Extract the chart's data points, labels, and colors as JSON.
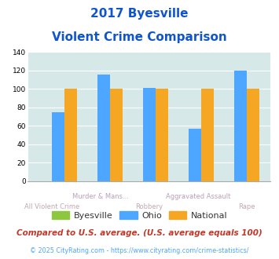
{
  "title_line1": "2017 Byesville",
  "title_line2": "Violent Crime Comparison",
  "categories": [
    "All Violent Crime",
    "Murder & Mans...",
    "Robbery",
    "Aggravated Assault",
    "Rape"
  ],
  "cat_top": [
    "",
    "Murder & Mans...",
    "",
    "Aggravated Assault",
    ""
  ],
  "cat_bot": [
    "All Violent Crime",
    "",
    "Robbery",
    "",
    "Rape"
  ],
  "byesville": [
    0,
    0,
    0,
    0,
    0
  ],
  "ohio": [
    75,
    115,
    101,
    57,
    120
  ],
  "national": [
    100,
    100,
    100,
    100,
    100
  ],
  "byesville_color": "#8dc63f",
  "ohio_color": "#4da6ff",
  "national_color": "#f5a623",
  "ylim": [
    0,
    140
  ],
  "yticks": [
    0,
    20,
    40,
    60,
    80,
    100,
    120,
    140
  ],
  "bg_color": "#d6e8e8",
  "title_color": "#1155cc",
  "xlabel_top_color": "#b8a0b8",
  "xlabel_bot_color": "#c0a8b0",
  "legend_text_color": "#333333",
  "footnote1": "Compared to U.S. average. (U.S. average equals 100)",
  "footnote2": "© 2025 CityRating.com - https://www.cityrating.com/crime-statistics/",
  "footnote1_color": "#c0392b",
  "footnote2_color": "#4da6ff"
}
